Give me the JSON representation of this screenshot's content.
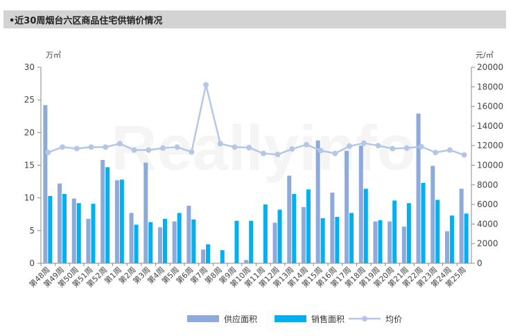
{
  "title": "•近30周烟台六区商品住宅供销价情况",
  "left_unit": "万㎡",
  "right_unit": "元/㎡",
  "watermark": "Reallyinfo",
  "colors": {
    "supply": "#8eaadb",
    "sales": "#00b0f0",
    "price": "#b4c7e7",
    "title_bg": "#d3d3d3"
  },
  "chart_data": {
    "type": "bar",
    "categories": [
      "第48周",
      "第49周",
      "第50周",
      "第51周",
      "第52周",
      "第1周",
      "第2周",
      "第3周",
      "第4周",
      "第5周",
      "第6周",
      "第7周",
      "第8周",
      "第9周",
      "第10周",
      "第11周",
      "第12周",
      "第13周",
      "第14周",
      "第15周",
      "第16周",
      "第17周",
      "第18周",
      "第19周",
      "第20周",
      "第21周",
      "第22周",
      "第23周",
      "第24周",
      "第25周"
    ],
    "series": [
      {
        "name": "供应面积",
        "type": "bar",
        "axis": "left",
        "values": [
          24.2,
          12.2,
          9.9,
          6.8,
          15.8,
          12.7,
          7.7,
          15.4,
          5.5,
          6.4,
          8.8,
          2.1,
          0,
          0,
          0.5,
          0,
          6.2,
          13.4,
          8.6,
          18.8,
          10.8,
          17.2,
          18.0,
          6.4,
          6.4,
          5.6,
          22.9,
          14.9,
          4.9,
          11.4
        ]
      },
      {
        "name": "销售面积",
        "type": "bar",
        "axis": "left",
        "values": [
          10.3,
          10.6,
          9.2,
          9.1,
          14.7,
          12.8,
          5.9,
          6.3,
          6.8,
          7.7,
          6.7,
          2.9,
          2.0,
          6.5,
          6.5,
          9.0,
          8.2,
          10.6,
          11.3,
          6.9,
          7.1,
          7.7,
          11.4,
          6.6,
          9.6,
          9.2,
          12.3,
          9.7,
          7.3,
          7.6
        ]
      },
      {
        "name": "均价",
        "type": "line",
        "axis": "right",
        "values": [
          11300,
          11850,
          11700,
          11850,
          11850,
          12200,
          11550,
          11550,
          11750,
          11850,
          11350,
          18200,
          12200,
          11850,
          11800,
          11200,
          11100,
          11650,
          12100,
          11500,
          11200,
          11950,
          12250,
          12000,
          11700,
          11750,
          11900,
          11300,
          11550,
          11050
        ]
      }
    ],
    "y_left": {
      "ylim": [
        0,
        30
      ],
      "ticks": [
        "0",
        "5",
        "10",
        "15",
        "20",
        "25",
        "30"
      ]
    },
    "y_right": {
      "ylim": [
        0,
        20000
      ],
      "ticks": [
        "0",
        "2000",
        "4000",
        "6000",
        "8000",
        "10000",
        "12000",
        "14000",
        "16000",
        "18000",
        "20000"
      ]
    },
    "grid": false,
    "legend": "bottom"
  }
}
